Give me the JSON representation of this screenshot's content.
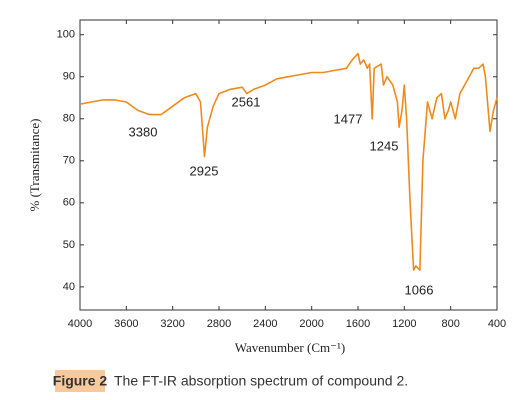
{
  "chart_data": {
    "type": "line",
    "xlabel": "Wavenumber (Cm⁻¹)",
    "ylabel": "% (Transmitance)",
    "xlim": [
      4000,
      400
    ],
    "ylim": [
      34.5,
      103.5
    ],
    "xticks": [
      4000,
      3600,
      3200,
      2800,
      2400,
      2000,
      1600,
      1200,
      800,
      400
    ],
    "yticks": [
      40,
      50,
      60,
      70,
      80,
      90,
      100
    ],
    "annotations": [
      "3380",
      "2925",
      "2561",
      "1477",
      "1245",
      "1066"
    ],
    "series": [
      {
        "color": "#f08a1c",
        "x": [
          4000,
          3900,
          3800,
          3700,
          3600,
          3500,
          3400,
          3300,
          3200,
          3100,
          3000,
          2960,
          2925,
          2900,
          2850,
          2800,
          2700,
          2600,
          2561,
          2500,
          2400,
          2300,
          2200,
          2100,
          2000,
          1900,
          1800,
          1700,
          1650,
          1600,
          1580,
          1550,
          1520,
          1500,
          1477,
          1460,
          1400,
          1380,
          1350,
          1300,
          1260,
          1245,
          1220,
          1200,
          1180,
          1150,
          1120,
          1100,
          1066,
          1040,
          1000,
          960,
          920,
          880,
          850,
          820,
          800,
          760,
          720,
          680,
          640,
          600,
          560,
          520,
          500,
          460,
          430,
          400
        ],
        "values": [
          83.5,
          84,
          84.5,
          84.5,
          84,
          82,
          81,
          81,
          83,
          85,
          86,
          84,
          71,
          78,
          83,
          86,
          87,
          87.5,
          86,
          87,
          88,
          89.5,
          90,
          90.5,
          91,
          91,
          91.5,
          92,
          94,
          95.5,
          93,
          94,
          92,
          93,
          80,
          92,
          93,
          88,
          90,
          88,
          84,
          78,
          82,
          88,
          80,
          60,
          44,
          45,
          44,
          70,
          84,
          80,
          85,
          86,
          80,
          82,
          84,
          80,
          86,
          88,
          90,
          92,
          92,
          93,
          90,
          77,
          82,
          85
        ]
      }
    ]
  },
  "caption": {
    "label": "Figure 2",
    "text": "The FT-IR absorption spectrum of compound 2."
  }
}
